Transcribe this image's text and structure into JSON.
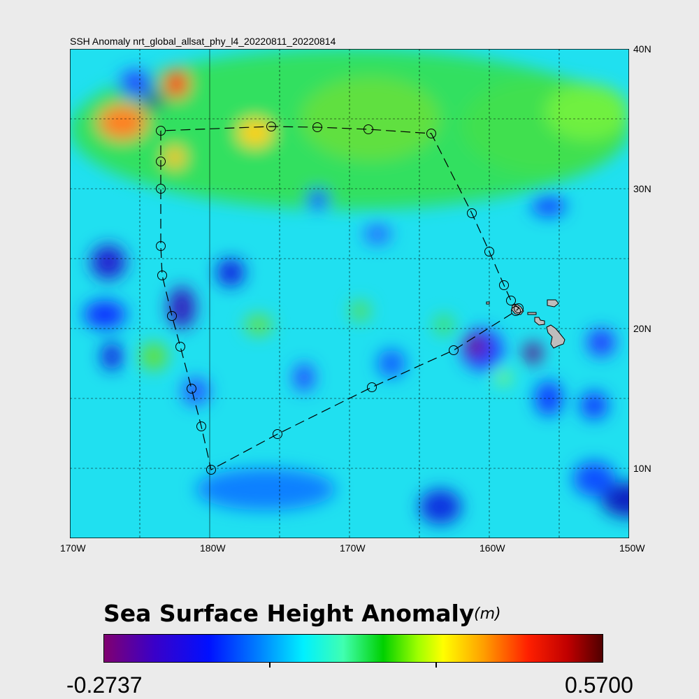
{
  "title": "SSH Anomaly nrt_global_allsat_phy_l4_20220811_20220814",
  "map": {
    "lon_labels": [
      "170W",
      "180W",
      "170W",
      "160W",
      "150W"
    ],
    "lat_labels": [
      "40N",
      "30N",
      "20N",
      "10N"
    ],
    "grid": true,
    "track_points_lon_lat": [
      [
        176.5,
        34.15
      ],
      [
        176.5,
        31.95
      ],
      [
        176.5,
        30.0
      ],
      [
        176.5,
        25.9
      ],
      [
        176.6,
        23.8
      ],
      [
        177.3,
        20.9
      ],
      [
        177.9,
        18.7
      ],
      [
        178.7,
        15.7
      ],
      [
        179.4,
        13.0
      ],
      [
        180.1,
        9.9
      ],
      [
        184.85,
        12.45
      ],
      [
        191.6,
        15.8
      ],
      [
        197.45,
        18.45
      ],
      [
        201.9,
        21.25
      ],
      [
        202.1,
        21.45
      ],
      [
        201.55,
        22.0
      ],
      [
        201.05,
        23.1
      ],
      [
        200.0,
        25.5
      ],
      [
        198.75,
        28.25
      ],
      [
        195.85,
        33.95
      ],
      [
        191.35,
        34.25
      ],
      [
        187.7,
        34.4
      ],
      [
        184.4,
        34.45
      ],
      [
        176.5,
        34.15
      ]
    ],
    "land_color": "#bdbdbd"
  },
  "colorbar": {
    "title": "Sea Surface Height Anomaly",
    "units": "(m)",
    "min_label": "-0.2737",
    "max_label": "0.5700",
    "colormap": [
      "#800070",
      "#0010ff",
      "#00f0ff",
      "#00d000",
      "#ffff00",
      "#ff2000",
      "#500000"
    ]
  }
}
